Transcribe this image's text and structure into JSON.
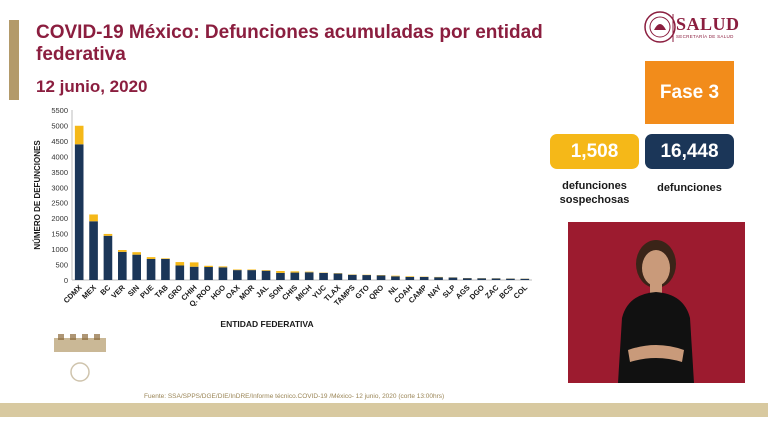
{
  "header": {
    "title": "COVID-19 México: Defunciones acumuladas por entidad federativa",
    "date": "12 junio, 2020"
  },
  "logo": {
    "name": "SALUD",
    "subtitle": "SECRETARÍA DE SALUD"
  },
  "phase": {
    "label": "Fase 3",
    "color": "#f28c1b"
  },
  "stats": {
    "suspected": {
      "value": "1,508",
      "label": "defunciones sospechosas",
      "color": "#f5b818"
    },
    "confirmed": {
      "value": "16,448",
      "label": "defunciones",
      "color": "#1b3658"
    }
  },
  "source": "Fuente: SSA/SPPS/DGE/DIE/InDRE/Informe técnico.COVID-19 /México- 12 junio, 2020 (corte 13:00hrs)",
  "chart_data": {
    "type": "bar",
    "stacked": true,
    "xlabel": "ENTIDAD FEDERATIVA",
    "ylabel": "NÚMERO DE DEFUNCIONES",
    "ylim": [
      0,
      5500
    ],
    "yticks": [
      0,
      500,
      1000,
      1500,
      2000,
      2500,
      3000,
      3500,
      4000,
      4500,
      5000,
      5500
    ],
    "grid": false,
    "categories": [
      "CDMX",
      "MEX",
      "BC",
      "VER",
      "SIN",
      "PUE",
      "TAB",
      "GRO",
      "CHIH",
      "Q. ROO",
      "HGO",
      "OAX",
      "MOR",
      "JAL",
      "SON",
      "CHIS",
      "MICH",
      "YUC",
      "TLAX",
      "TAMPS",
      "GTO",
      "QRO",
      "NL",
      "COAH",
      "CAMP",
      "NAY",
      "SLP",
      "AGS",
      "DGO",
      "ZAC",
      "BCS",
      "COL"
    ],
    "series": [
      {
        "color": "#1b3658",
        "values": [
          4390,
          1900,
          1430,
          910,
          820,
          680,
          680,
          470,
          430,
          420,
          410,
          320,
          320,
          300,
          230,
          240,
          250,
          230,
          210,
          170,
          160,
          150,
          120,
          100,
          100,
          90,
          80,
          60,
          55,
          50,
          45,
          40
        ]
      },
      {
        "color": "#f5b818",
        "values": [
          600,
          220,
          60,
          60,
          80,
          60,
          20,
          110,
          140,
          40,
          30,
          20,
          20,
          20,
          60,
          40,
          20,
          10,
          10,
          10,
          10,
          10,
          20,
          20,
          10,
          10,
          5,
          5,
          5,
          5,
          5,
          5
        ]
      }
    ]
  }
}
